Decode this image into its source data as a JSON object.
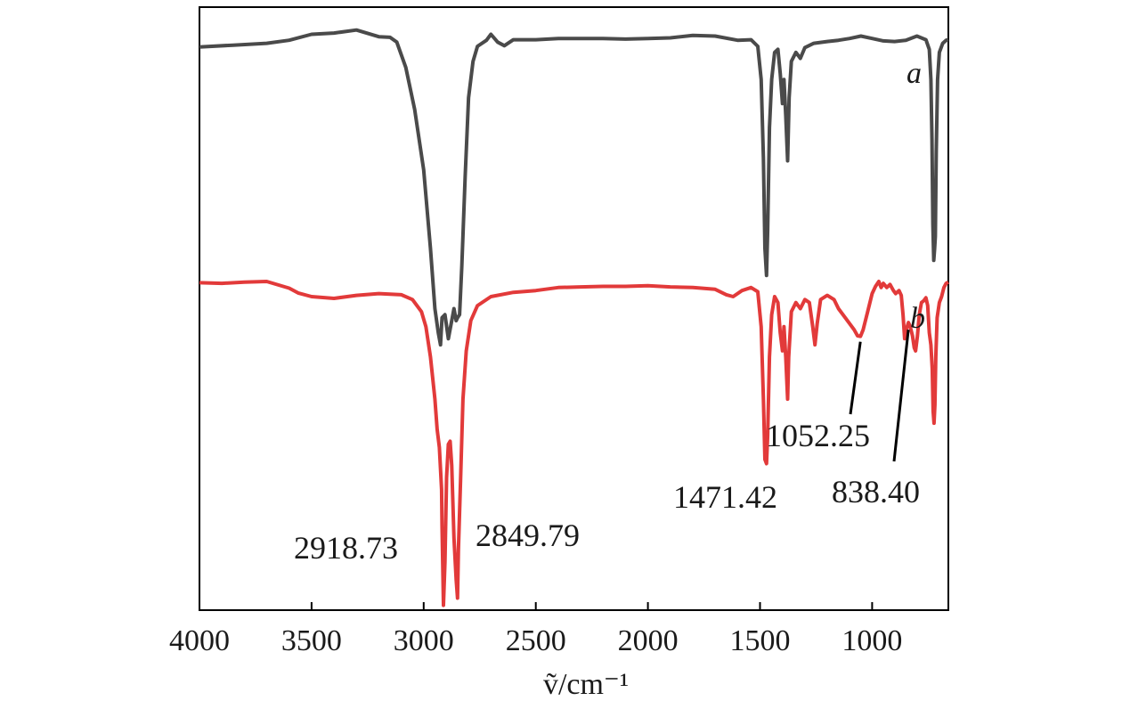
{
  "chart_data": {
    "type": "line",
    "xlabel": "ṽ/cm⁻¹",
    "xlim": [
      4000,
      660
    ],
    "x_reversed": true,
    "xticks": [
      4000,
      3500,
      3000,
      2500,
      2000,
      1500,
      1000
    ],
    "ylim": [
      0,
      100
    ],
    "y_ticks_shown": false,
    "grid": false,
    "series": [
      {
        "name": "a",
        "color": "#4a4a4a",
        "points": [
          [
            4000,
            93.4
          ],
          [
            3850,
            93.7
          ],
          [
            3700,
            94.0
          ],
          [
            3600,
            94.5
          ],
          [
            3500,
            95.5
          ],
          [
            3400,
            95.7
          ],
          [
            3300,
            96.2
          ],
          [
            3200,
            95.1
          ],
          [
            3150,
            95.0
          ],
          [
            3120,
            94.2
          ],
          [
            3080,
            90.0
          ],
          [
            3040,
            83.0
          ],
          [
            3000,
            73.0
          ],
          [
            2970,
            60.0
          ],
          [
            2950,
            50.0
          ],
          [
            2935,
            46.0
          ],
          [
            2925,
            44.0
          ],
          [
            2918,
            48.5
          ],
          [
            2905,
            49.0
          ],
          [
            2890,
            45.0
          ],
          [
            2875,
            48.0
          ],
          [
            2865,
            50.0
          ],
          [
            2855,
            48.0
          ],
          [
            2849,
            48.5
          ],
          [
            2840,
            49.0
          ],
          [
            2830,
            57.0
          ],
          [
            2815,
            72.0
          ],
          [
            2800,
            85.0
          ],
          [
            2780,
            91.0
          ],
          [
            2760,
            93.5
          ],
          [
            2720,
            94.5
          ],
          [
            2700,
            95.5
          ],
          [
            2670,
            94.2
          ],
          [
            2640,
            93.6
          ],
          [
            2600,
            94.6
          ],
          [
            2500,
            94.6
          ],
          [
            2400,
            94.8
          ],
          [
            2300,
            94.8
          ],
          [
            2200,
            94.8
          ],
          [
            2100,
            94.7
          ],
          [
            2000,
            94.8
          ],
          [
            1900,
            94.9
          ],
          [
            1800,
            95.3
          ],
          [
            1700,
            95.2
          ],
          [
            1600,
            94.5
          ],
          [
            1540,
            94.6
          ],
          [
            1510,
            93.5
          ],
          [
            1495,
            88.0
          ],
          [
            1485,
            75.0
          ],
          [
            1478,
            60.0
          ],
          [
            1471,
            55.5
          ],
          [
            1466,
            63.0
          ],
          [
            1458,
            80.0
          ],
          [
            1448,
            88.0
          ],
          [
            1435,
            92.5
          ],
          [
            1420,
            93.0
          ],
          [
            1410,
            89.0
          ],
          [
            1400,
            84.0
          ],
          [
            1393,
            88.0
          ],
          [
            1385,
            82.0
          ],
          [
            1377,
            74.5
          ],
          [
            1370,
            85.0
          ],
          [
            1360,
            91.0
          ],
          [
            1340,
            92.5
          ],
          [
            1320,
            91.5
          ],
          [
            1300,
            93.3
          ],
          [
            1260,
            94.0
          ],
          [
            1200,
            94.3
          ],
          [
            1150,
            94.5
          ],
          [
            1100,
            94.8
          ],
          [
            1050,
            95.2
          ],
          [
            1000,
            94.8
          ],
          [
            950,
            94.4
          ],
          [
            900,
            94.3
          ],
          [
            850,
            94.5
          ],
          [
            800,
            95.2
          ],
          [
            760,
            94.6
          ],
          [
            745,
            93.0
          ],
          [
            738,
            88.0
          ],
          [
            733,
            78.0
          ],
          [
            729,
            64.0
          ],
          [
            725,
            58.0
          ],
          [
            721,
            60.0
          ],
          [
            718,
            62.0
          ],
          [
            714,
            76.0
          ],
          [
            708,
            88.0
          ],
          [
            700,
            92.5
          ],
          [
            685,
            94.0
          ],
          [
            670,
            94.5
          ],
          [
            660,
            94.6
          ]
        ]
      },
      {
        "name": "b",
        "color": "#e23a3a",
        "points": [
          [
            4000,
            54.3
          ],
          [
            3900,
            54.2
          ],
          [
            3800,
            54.4
          ],
          [
            3700,
            54.5
          ],
          [
            3600,
            53.4
          ],
          [
            3560,
            52.6
          ],
          [
            3500,
            52.0
          ],
          [
            3400,
            51.7
          ],
          [
            3300,
            52.2
          ],
          [
            3200,
            52.5
          ],
          [
            3100,
            52.3
          ],
          [
            3050,
            51.5
          ],
          [
            3010,
            49.5
          ],
          [
            2990,
            47.0
          ],
          [
            2970,
            42.0
          ],
          [
            2950,
            35.0
          ],
          [
            2940,
            30.0
          ],
          [
            2930,
            27.0
          ],
          [
            2920,
            20.0
          ],
          [
            2918,
            14.0
          ],
          [
            2912,
            0.8
          ],
          [
            2905,
            8.0
          ],
          [
            2898,
            22.0
          ],
          [
            2890,
            27.5
          ],
          [
            2882,
            28.0
          ],
          [
            2875,
            24.0
          ],
          [
            2865,
            12.0
          ],
          [
            2855,
            5.0
          ],
          [
            2849,
            2.0
          ],
          [
            2845,
            10.0
          ],
          [
            2835,
            22.0
          ],
          [
            2825,
            35.0
          ],
          [
            2810,
            43.0
          ],
          [
            2790,
            48.0
          ],
          [
            2760,
            50.5
          ],
          [
            2700,
            52.0
          ],
          [
            2600,
            52.7
          ],
          [
            2500,
            53.0
          ],
          [
            2400,
            53.5
          ],
          [
            2300,
            53.6
          ],
          [
            2200,
            53.7
          ],
          [
            2100,
            53.7
          ],
          [
            2000,
            53.8
          ],
          [
            1900,
            53.6
          ],
          [
            1800,
            53.5
          ],
          [
            1700,
            53.2
          ],
          [
            1650,
            52.3
          ],
          [
            1620,
            52.0
          ],
          [
            1580,
            53.0
          ],
          [
            1540,
            53.5
          ],
          [
            1510,
            52.8
          ],
          [
            1495,
            47.0
          ],
          [
            1485,
            35.0
          ],
          [
            1478,
            25.0
          ],
          [
            1471,
            24.3
          ],
          [
            1466,
            29.0
          ],
          [
            1458,
            42.0
          ],
          [
            1448,
            49.0
          ],
          [
            1435,
            52.0
          ],
          [
            1420,
            51.0
          ],
          [
            1410,
            46.0
          ],
          [
            1400,
            43.0
          ],
          [
            1393,
            47.0
          ],
          [
            1385,
            42.0
          ],
          [
            1377,
            35.0
          ],
          [
            1372,
            42.0
          ],
          [
            1360,
            49.5
          ],
          [
            1340,
            51.0
          ],
          [
            1320,
            50.0
          ],
          [
            1300,
            51.5
          ],
          [
            1280,
            51.0
          ],
          [
            1265,
            47.0
          ],
          [
            1255,
            44.0
          ],
          [
            1245,
            47.5
          ],
          [
            1230,
            51.5
          ],
          [
            1200,
            52.2
          ],
          [
            1170,
            51.5
          ],
          [
            1150,
            50.0
          ],
          [
            1120,
            48.5
          ],
          [
            1100,
            47.5
          ],
          [
            1080,
            46.5
          ],
          [
            1065,
            45.5
          ],
          [
            1052,
            45.4
          ],
          [
            1040,
            46.5
          ],
          [
            1020,
            49.5
          ],
          [
            1000,
            52.5
          ],
          [
            985,
            53.7
          ],
          [
            970,
            54.5
          ],
          [
            960,
            53.5
          ],
          [
            950,
            54.2
          ],
          [
            935,
            53.5
          ],
          [
            920,
            54.0
          ],
          [
            905,
            53.0
          ],
          [
            895,
            52.5
          ],
          [
            880,
            53.0
          ],
          [
            870,
            52.2
          ],
          [
            862,
            49.0
          ],
          [
            855,
            45.0
          ],
          [
            848,
            46.5
          ],
          [
            838,
            47.7
          ],
          [
            830,
            47.0
          ],
          [
            820,
            45.5
          ],
          [
            812,
            43.5
          ],
          [
            806,
            43.0
          ],
          [
            798,
            45.5
          ],
          [
            790,
            49.0
          ],
          [
            780,
            51.0
          ],
          [
            770,
            51.3
          ],
          [
            760,
            51.8
          ],
          [
            752,
            50.5
          ],
          [
            745,
            46.0
          ],
          [
            738,
            44.0
          ],
          [
            732,
            40.0
          ],
          [
            728,
            33.0
          ],
          [
            724,
            31.0
          ],
          [
            720,
            34.0
          ],
          [
            716,
            42.0
          ],
          [
            710,
            48.5
          ],
          [
            700,
            51.0
          ],
          [
            690,
            52.0
          ],
          [
            680,
            53.5
          ],
          [
            670,
            54.2
          ],
          [
            660,
            54.4
          ]
        ]
      }
    ],
    "annotations": [
      {
        "label": "2918.73",
        "x": 2918.73,
        "series": "b"
      },
      {
        "label": "2849.79",
        "x": 2849.79,
        "series": "b"
      },
      {
        "label": "1471.42",
        "x": 1471.42,
        "series": "b"
      },
      {
        "label": "1052.25",
        "x": 1052.25,
        "series": "b"
      },
      {
        "label": "838.40",
        "x": 838.4,
        "series": "b"
      }
    ]
  }
}
